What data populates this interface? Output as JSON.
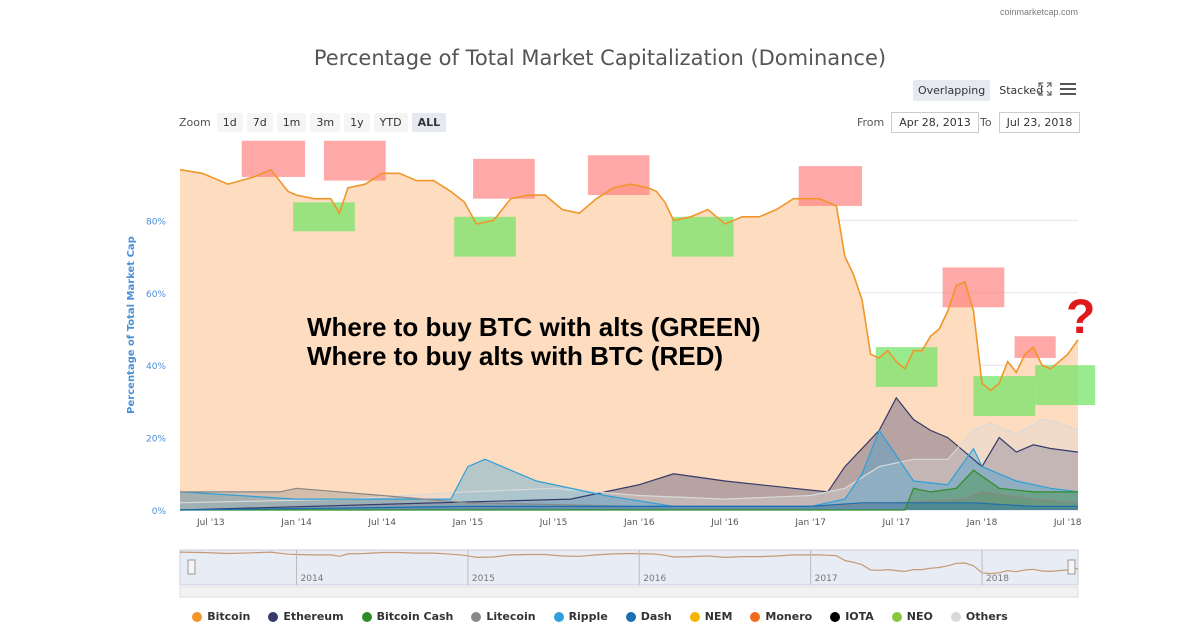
{
  "credit": "coinmarketcap.com",
  "view_toggle": {
    "overlapping": "Overlapping",
    "stacked": "Stacked"
  },
  "zoom": {
    "label": "Zoom",
    "buttons": [
      "1d",
      "7d",
      "1m",
      "3m",
      "1y",
      "YTD",
      "ALL"
    ],
    "active": "ALL"
  },
  "range": {
    "from_label": "From",
    "from": "Apr 28, 2013",
    "to_label": "To",
    "to": "Jul 23, 2018"
  },
  "annotations": {
    "green_text": "Where to buy BTC with alts (GREEN)",
    "red_text": "Where to buy alts with BTC (RED)",
    "question": "?"
  },
  "colors": {
    "bitcoin": "#f0962b",
    "ethereum": "#353a6b",
    "bitcoin_cash": "#2f8d27",
    "litecoin": "#888888",
    "ripple": "#2ea0d9",
    "dash": "#1c6fb1",
    "nem": "#f4b400",
    "monero": "#f06a1d",
    "iota": "#000000",
    "neo": "#8cc63e",
    "others": "#d9d9d9",
    "green_box": "#77e46a",
    "red_box": "#ff7a7a",
    "btc_fill": "#fddcbf"
  },
  "chart_data": {
    "type": "area",
    "title": "Percentage of Total Market Capitalization (Dominance)",
    "ylabel": "Percentage of Total Market Cap",
    "xlabel": "",
    "ylim": [
      0,
      100
    ],
    "yticks": [
      "0%",
      "20%",
      "40%",
      "60%",
      "80%"
    ],
    "xticks": [
      "Jul '13",
      "Jan '14",
      "Jul '14",
      "Jan '15",
      "Jul '15",
      "Jan '16",
      "Jul '16",
      "Jan '17",
      "Jul '17",
      "Jan '18",
      "Jul '18"
    ],
    "x_range": [
      2013.32,
      2018.56
    ],
    "navigator_years": [
      "2014",
      "2015",
      "2016",
      "2017",
      "2018"
    ],
    "series": [
      {
        "name": "Bitcoin",
        "x": [
          2013.32,
          2013.45,
          2013.6,
          2013.75,
          2013.85,
          2013.95,
          2014.0,
          2014.1,
          2014.2,
          2014.25,
          2014.3,
          2014.4,
          2014.5,
          2014.6,
          2014.7,
          2014.8,
          2014.9,
          2014.98,
          2015.05,
          2015.15,
          2015.25,
          2015.35,
          2015.45,
          2015.55,
          2015.65,
          2015.75,
          2015.85,
          2015.95,
          2016.05,
          2016.1,
          2016.15,
          2016.2,
          2016.3,
          2016.4,
          2016.5,
          2016.6,
          2016.7,
          2016.8,
          2016.9,
          2017.0,
          2017.05,
          2017.1,
          2017.15,
          2017.2,
          2017.25,
          2017.3,
          2017.35,
          2017.4,
          2017.45,
          2017.5,
          2017.55,
          2017.6,
          2017.65,
          2017.7,
          2017.75,
          2017.8,
          2017.85,
          2017.9,
          2017.95,
          2018.0,
          2018.05,
          2018.1,
          2018.15,
          2018.2,
          2018.25,
          2018.3,
          2018.35,
          2018.4,
          2018.45,
          2018.5,
          2018.56
        ],
        "values": [
          94,
          93,
          90,
          92,
          94,
          88,
          87,
          86,
          86,
          82,
          89,
          90,
          93,
          93,
          91,
          91,
          88,
          85,
          79,
          80,
          86,
          87,
          87,
          83,
          82,
          86,
          89,
          90,
          89,
          88,
          85,
          80,
          81,
          83,
          79,
          81,
          81,
          83,
          86,
          86,
          86,
          85,
          84,
          70,
          65,
          58,
          43,
          42,
          44,
          41,
          39,
          44,
          44,
          48,
          50,
          55,
          62,
          63,
          55,
          35,
          33,
          35,
          41,
          38,
          43,
          45,
          40,
          39,
          41,
          43,
          47
        ]
      },
      {
        "name": "Ethereum",
        "x": [
          2013.32,
          2015.6,
          2016.0,
          2016.2,
          2016.5,
          2016.9,
          2017.1,
          2017.2,
          2017.4,
          2017.5,
          2017.6,
          2017.7,
          2017.8,
          2017.9,
          2018.0,
          2018.1,
          2018.2,
          2018.3,
          2018.4,
          2018.56
        ],
        "values": [
          0,
          3,
          7,
          10,
          8,
          6,
          5,
          12,
          22,
          31,
          25,
          22,
          20,
          16,
          12,
          20,
          16,
          18,
          17,
          16
        ]
      },
      {
        "name": "Others",
        "x": [
          2013.32,
          2014.3,
          2015.0,
          2015.5,
          2016.0,
          2016.5,
          2017.0,
          2017.2,
          2017.4,
          2017.6,
          2017.8,
          2017.95,
          2018.05,
          2018.2,
          2018.35,
          2018.45,
          2018.56
        ],
        "values": [
          2,
          3,
          5,
          6,
          4,
          3,
          4,
          6,
          12,
          14,
          14,
          22,
          24,
          21,
          25,
          24,
          22
        ]
      },
      {
        "name": "Ripple",
        "x": [
          2013.32,
          2014.0,
          2014.4,
          2014.9,
          2015.0,
          2015.1,
          2015.4,
          2015.8,
          2016.2,
          2016.5,
          2017.0,
          2017.2,
          2017.3,
          2017.4,
          2017.6,
          2017.8,
          2017.95,
          2018.0,
          2018.2,
          2018.4,
          2018.56
        ],
        "values": [
          5,
          3,
          3,
          3,
          12,
          14,
          8,
          4,
          1,
          1,
          1,
          3,
          10,
          22,
          8,
          7,
          17,
          12,
          8,
          6,
          5
        ]
      },
      {
        "name": "Litecoin",
        "x": [
          2013.32,
          2013.9,
          2014.0,
          2014.5,
          2015.0,
          2016.0,
          2017.0,
          2017.5,
          2017.9,
          2018.0,
          2018.3,
          2018.56
        ],
        "values": [
          5,
          5,
          6,
          4,
          2,
          1,
          1,
          2,
          3,
          5,
          3,
          2
        ]
      },
      {
        "name": "Bitcoin Cash",
        "x": [
          2013.32,
          2017.55,
          2017.6,
          2017.7,
          2017.85,
          2017.95,
          2018.1,
          2018.3,
          2018.56
        ],
        "values": [
          0,
          0,
          6,
          5,
          6,
          11,
          6,
          5,
          5
        ]
      },
      {
        "name": "Dash",
        "x": [
          2013.32,
          2015.0,
          2016.0,
          2017.0,
          2017.3,
          2017.6,
          2017.95,
          2018.3,
          2018.56
        ],
        "values": [
          0,
          1,
          1,
          1,
          2,
          2,
          2,
          1,
          1
        ]
      }
    ],
    "red_zones": [
      {
        "x": [
          2013.68,
          2014.05
        ],
        "y": [
          92,
          102
        ]
      },
      {
        "x": [
          2014.16,
          2014.52
        ],
        "y": [
          91,
          102
        ]
      },
      {
        "x": [
          2015.03,
          2015.39
        ],
        "y": [
          86,
          97
        ]
      },
      {
        "x": [
          2015.7,
          2016.06
        ],
        "y": [
          87,
          98
        ]
      },
      {
        "x": [
          2016.93,
          2017.3
        ],
        "y": [
          84,
          95
        ]
      },
      {
        "x": [
          2017.77,
          2018.13
        ],
        "y": [
          56,
          67
        ]
      },
      {
        "x": [
          2018.19,
          2018.43
        ],
        "y": [
          42,
          48
        ]
      }
    ],
    "green_zones": [
      {
        "x": [
          2013.98,
          2014.34
        ],
        "y": [
          77,
          85
        ]
      },
      {
        "x": [
          2014.92,
          2015.28
        ],
        "y": [
          70,
          81
        ]
      },
      {
        "x": [
          2016.19,
          2016.55
        ],
        "y": [
          70,
          81
        ]
      },
      {
        "x": [
          2017.38,
          2017.74
        ],
        "y": [
          34,
          45
        ]
      },
      {
        "x": [
          2017.95,
          2018.31
        ],
        "y": [
          26,
          37
        ]
      },
      {
        "x": [
          2018.31,
          2018.66
        ],
        "y": [
          29,
          40
        ]
      }
    ]
  },
  "legend": [
    {
      "label": "Bitcoin",
      "color": "#f0962b"
    },
    {
      "label": "Ethereum",
      "color": "#353a6b"
    },
    {
      "label": "Bitcoin Cash",
      "color": "#2f8d27"
    },
    {
      "label": "Litecoin",
      "color": "#888888"
    },
    {
      "label": "Ripple",
      "color": "#2ea0d9"
    },
    {
      "label": "Dash",
      "color": "#1c6fb1"
    },
    {
      "label": "NEM",
      "color": "#f4b400"
    },
    {
      "label": "Monero",
      "color": "#f06a1d"
    },
    {
      "label": "IOTA",
      "color": "#000000"
    },
    {
      "label": "NEO",
      "color": "#8cc63e"
    },
    {
      "label": "Others",
      "color": "#d9d9d9"
    }
  ]
}
